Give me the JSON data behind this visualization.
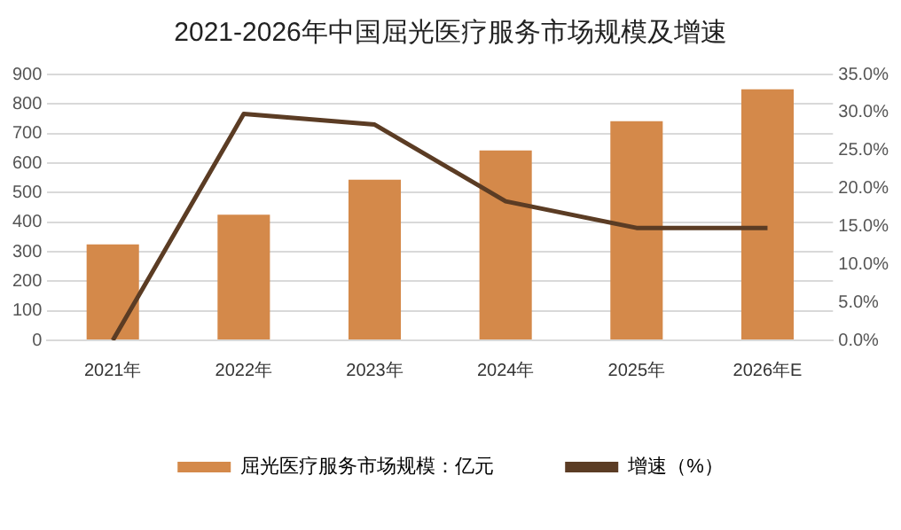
{
  "chart_data": {
    "type": "bar",
    "title": "2021-2026年中国屈光医疗服务市场规模及增速",
    "categories": [
      "2021年",
      "2022年",
      "2023年",
      "2024年",
      "2025年",
      "2026年E"
    ],
    "series": [
      {
        "name": "屈光医疗服务市场规模：亿元",
        "color": "#d4894a",
        "values": [
          325,
          425,
          544,
          643,
          742,
          850
        ]
      },
      {
        "name": "增速（%）",
        "type": "line",
        "axis": "y2",
        "color": "#5b3c24",
        "values": [
          0,
          29.8,
          28.4,
          18.3,
          14.8,
          14.8
        ]
      }
    ],
    "ylim": [
      0,
      900
    ],
    "yticks": [
      0,
      100,
      200,
      300,
      400,
      500,
      600,
      700,
      800,
      900
    ],
    "y2lim": [
      0,
      35
    ],
    "y2ticks": [
      {
        "value": 0,
        "label": "0.0%"
      },
      {
        "value": 5,
        "label": "5.0%"
      },
      {
        "value": 10,
        "label": "10.0%"
      },
      {
        "value": 15,
        "label": "15.0%"
      },
      {
        "value": 20,
        "label": "20.0%"
      },
      {
        "value": 25,
        "label": "25.0%"
      },
      {
        "value": 30,
        "label": "30.0%"
      },
      {
        "value": 35,
        "label": "35.0%"
      }
    ],
    "grid": "y",
    "legend": "bottom",
    "marker": "none"
  }
}
